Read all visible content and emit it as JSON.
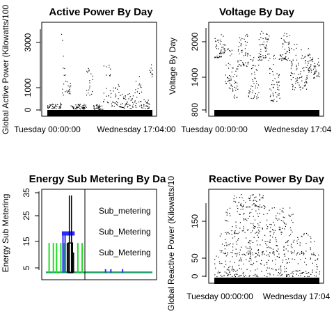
{
  "chart_data": [
    {
      "type": "scatter",
      "title": "Active Power By Day",
      "xlabel": "",
      "ylabel": "Global Active Power (Kilowatts/100",
      "x_ticks": [
        "Tuesday 00:00:00",
        "Wednesday 17:04:00"
      ],
      "y_ticks": [
        0,
        1000,
        3000
      ],
      "ylim": [
        0,
        3900
      ],
      "segments": [
        {
          "x": [
            0.0,
            0.13
          ],
          "y": [
            90,
            330
          ]
        },
        {
          "x": [
            0.13,
            0.15
          ],
          "y": [
            300,
            3600
          ]
        },
        {
          "x": [
            0.15,
            0.22
          ],
          "y": [
            700,
            2000
          ]
        },
        {
          "x": [
            0.22,
            0.37
          ],
          "y": [
            60,
            280
          ]
        },
        {
          "x": [
            0.37,
            0.43
          ],
          "y": [
            700,
            2000
          ]
        },
        {
          "x": [
            0.43,
            0.53
          ],
          "y": [
            40,
            260
          ]
        },
        {
          "x": [
            0.53,
            0.6
          ],
          "y": [
            350,
            2800
          ]
        },
        {
          "x": [
            0.6,
            0.7
          ],
          "y": [
            150,
            1200
          ]
        },
        {
          "x": [
            0.7,
            0.82
          ],
          "y": [
            80,
            800
          ]
        },
        {
          "x": [
            0.82,
            0.9
          ],
          "y": [
            120,
            1600
          ]
        },
        {
          "x": [
            0.9,
            0.97
          ],
          "y": [
            80,
            500
          ]
        },
        {
          "x": [
            0.97,
            1.0
          ],
          "y": [
            1500,
            2200
          ]
        }
      ]
    },
    {
      "type": "scatter",
      "title": "Voltage By Day",
      "xlabel": "",
      "ylabel": "Voltage By Day",
      "x_ticks": [
        "Tuesday 00:00:00",
        "Wednesday 17:04"
      ],
      "y_ticks": [
        800,
        1400,
        2000
      ],
      "ylim": [
        750,
        2200
      ],
      "segments": [
        {
          "x": [
            0.0,
            0.1
          ],
          "y": [
            1650,
            2050
          ]
        },
        {
          "x": [
            0.1,
            0.17
          ],
          "y": [
            1100,
            1800
          ]
        },
        {
          "x": [
            0.17,
            0.22
          ],
          "y": [
            950,
            1500
          ]
        },
        {
          "x": [
            0.22,
            0.32
          ],
          "y": [
            1500,
            2100
          ]
        },
        {
          "x": [
            0.32,
            0.42
          ],
          "y": [
            950,
            1700
          ]
        },
        {
          "x": [
            0.42,
            0.52
          ],
          "y": [
            1600,
            2100
          ]
        },
        {
          "x": [
            0.52,
            0.62
          ],
          "y": [
            900,
            1700
          ]
        },
        {
          "x": [
            0.62,
            0.72
          ],
          "y": [
            1600,
            2100
          ]
        },
        {
          "x": [
            0.72,
            0.8
          ],
          "y": [
            1100,
            1900
          ]
        },
        {
          "x": [
            0.8,
            0.88
          ],
          "y": [
            1100,
            1800
          ]
        },
        {
          "x": [
            0.88,
            0.94
          ],
          "y": [
            1400,
            1900
          ]
        },
        {
          "x": [
            0.94,
            1.0
          ],
          "y": [
            1300,
            1700
          ]
        }
      ]
    },
    {
      "type": "line",
      "title": "Energy Sub Metering By Da",
      "xlabel": "",
      "ylabel": "Energy  Sub Metering",
      "y_ticks": [
        5,
        15,
        25,
        35
      ],
      "ylim": [
        0,
        36
      ],
      "series": [
        {
          "name": "Sub_metering",
          "color": "#000000"
        },
        {
          "name": "Sub_Metering",
          "color": "#2b2bff"
        },
        {
          "name": "Sub_Metering",
          "color": "#22dd22"
        }
      ],
      "legend_position": "top-right",
      "black_bars": [
        {
          "x": 0.22,
          "y": 34
        },
        {
          "x": 0.24,
          "y": 34
        },
        {
          "x": 0.2,
          "y": 14
        },
        {
          "x": 0.26,
          "y": 10
        }
      ],
      "blue_level": {
        "x": [
          0.15,
          0.27
        ],
        "y": 18
      },
      "green_bars": [
        {
          "x": 0.03,
          "y": 14
        },
        {
          "x": 0.07,
          "y": 14
        },
        {
          "x": 0.1,
          "y": 14
        },
        {
          "x": 0.14,
          "y": 14
        },
        {
          "x": 0.17,
          "y": 14
        },
        {
          "x": 0.3,
          "y": 14
        },
        {
          "x": 0.34,
          "y": 14
        }
      ],
      "baseline": 1.5
    },
    {
      "type": "scatter",
      "title": "Reactive Power By Day",
      "xlabel": "",
      "ylabel": "Global Reactive Power (Kilowatts/10",
      "x_ticks": [
        "Tuesday 00:00:00",
        "Wednesday 17:04"
      ],
      "y_ticks": [
        0,
        50,
        150
      ],
      "ylim": [
        0,
        230
      ],
      "segments": [
        {
          "x": [
            0.0,
            1.0
          ],
          "y": [
            0,
            60
          ]
        },
        {
          "x": [
            0.05,
            0.95
          ],
          "y": [
            60,
            120
          ]
        },
        {
          "x": [
            0.1,
            0.75
          ],
          "y": [
            120,
            190
          ]
        },
        {
          "x": [
            0.18,
            0.48
          ],
          "y": [
            190,
            225
          ]
        }
      ]
    }
  ]
}
